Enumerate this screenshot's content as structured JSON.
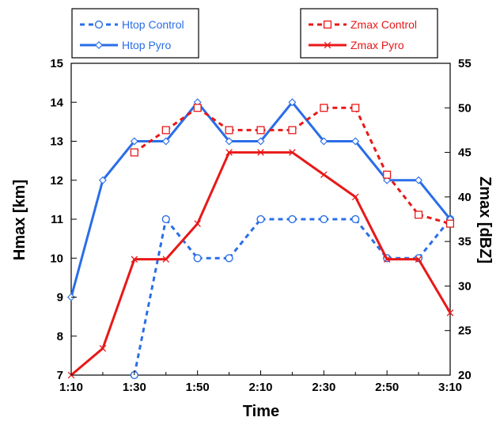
{
  "chart_data": {
    "type": "line",
    "x": [
      "1:10",
      "1:20",
      "1:30",
      "1:40",
      "1:50",
      "2:00",
      "2:10",
      "2:20",
      "2:30",
      "2:40",
      "2:50",
      "3:00",
      "3:10"
    ],
    "xticks": [
      "1:10",
      "1:30",
      "1:50",
      "2:10",
      "2:30",
      "2:50",
      "3:10"
    ],
    "xlabel": "Time",
    "ylabel_left": "Hmax [km]",
    "ylabel_right": "Zmax [dBZ]",
    "ylim_left": [
      7,
      15
    ],
    "ylim_right": [
      20,
      55
    ],
    "yticks_left": [
      "7",
      "8",
      "9",
      "10",
      "11",
      "12",
      "13",
      "14",
      "15"
    ],
    "yticks_right": [
      "20",
      "25",
      "30",
      "35",
      "40",
      "45",
      "50",
      "55"
    ],
    "grid": false,
    "series": [
      {
        "name": "Htop Control",
        "axis": "left",
        "color": "#2a6ee8",
        "style": "dashed",
        "marker": "circle",
        "values": [
          null,
          null,
          7,
          11,
          10,
          10,
          11,
          11,
          11,
          11,
          10,
          10,
          11
        ]
      },
      {
        "name": "Htop Pyro",
        "axis": "left",
        "color": "#2a6ee8",
        "style": "solid",
        "marker": "diamond",
        "values": [
          9,
          12,
          13,
          13,
          14,
          13,
          13,
          14,
          13,
          13,
          12,
          12,
          11
        ]
      },
      {
        "name": "Zmax Control",
        "axis": "right",
        "color": "#e81818",
        "style": "dashed",
        "marker": "square",
        "values": [
          null,
          null,
          45,
          47.5,
          50,
          47.5,
          47.5,
          47.5,
          50,
          50,
          42.5,
          38,
          37
        ]
      },
      {
        "name": "Zmax Pyro",
        "axis": "right",
        "color": "#e81818",
        "style": "solid",
        "marker": "x",
        "values": [
          20,
          23,
          33,
          33,
          37,
          45,
          45,
          45,
          42.5,
          40,
          33,
          33,
          27
        ]
      }
    ],
    "legend": [
      "top-left",
      "top-right"
    ]
  }
}
